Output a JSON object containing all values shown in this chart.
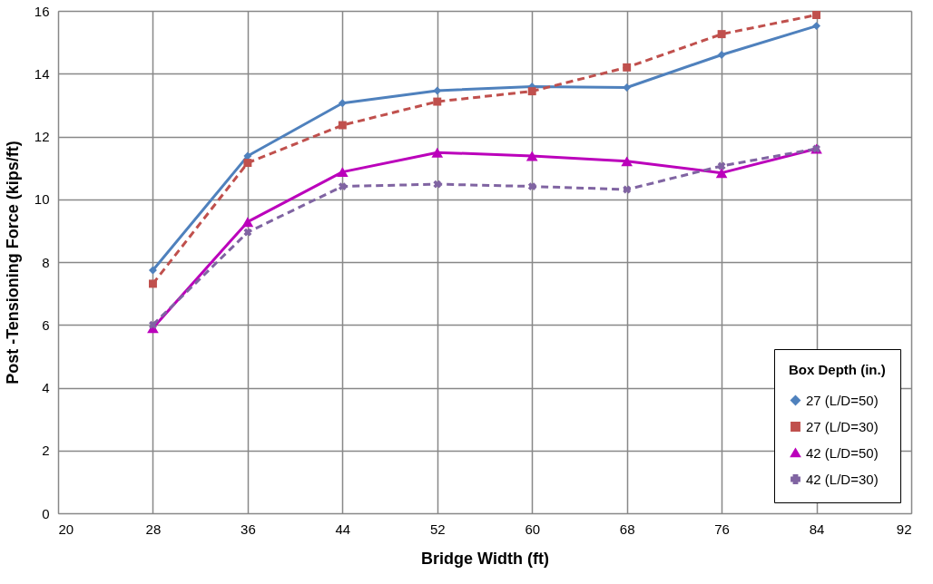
{
  "chart_data": {
    "type": "line",
    "xlabel": "Bridge Width (ft)",
    "ylabel": "Post -Tensioning Force (kips/ft)",
    "legend_title": "Box Depth (in.)",
    "legend": "bottom right",
    "grid": true,
    "xlim": [
      20,
      92
    ],
    "xticks": [
      20,
      28,
      36,
      44,
      52,
      60,
      68,
      76,
      84,
      92
    ],
    "ylim": [
      0,
      16
    ],
    "yticks": [
      0,
      2,
      4,
      6,
      8,
      10,
      12,
      14,
      16
    ],
    "x": [
      28,
      36,
      44,
      52,
      60,
      68,
      76,
      84
    ],
    "series": [
      {
        "name": "27 (L/D=50)",
        "color": "#4f81bd",
        "marker": "diamond",
        "line_style": "solid",
        "values": [
          7.74,
          11.38,
          13.06,
          13.46,
          13.59,
          13.56,
          14.6,
          15.52
        ]
      },
      {
        "name": "27 (L/D=30)",
        "color": "#c0504d",
        "marker": "square",
        "line_style": "dashed",
        "values": [
          7.31,
          11.16,
          12.36,
          13.11,
          13.44,
          14.2,
          15.26,
          15.87
        ]
      },
      {
        "name": "42 (L/D=50)",
        "color": "#bb00bb",
        "marker": "triangle",
        "line_style": "solid",
        "values": [
          5.9,
          9.28,
          10.87,
          11.49,
          11.38,
          11.21,
          10.84,
          11.61
        ]
      },
      {
        "name": "42 (L/D=30)",
        "color": "#8064a2",
        "marker": "cross",
        "line_style": "dashed",
        "values": [
          6.0,
          8.95,
          10.41,
          10.48,
          10.41,
          10.31,
          11.06,
          11.61
        ]
      }
    ]
  }
}
